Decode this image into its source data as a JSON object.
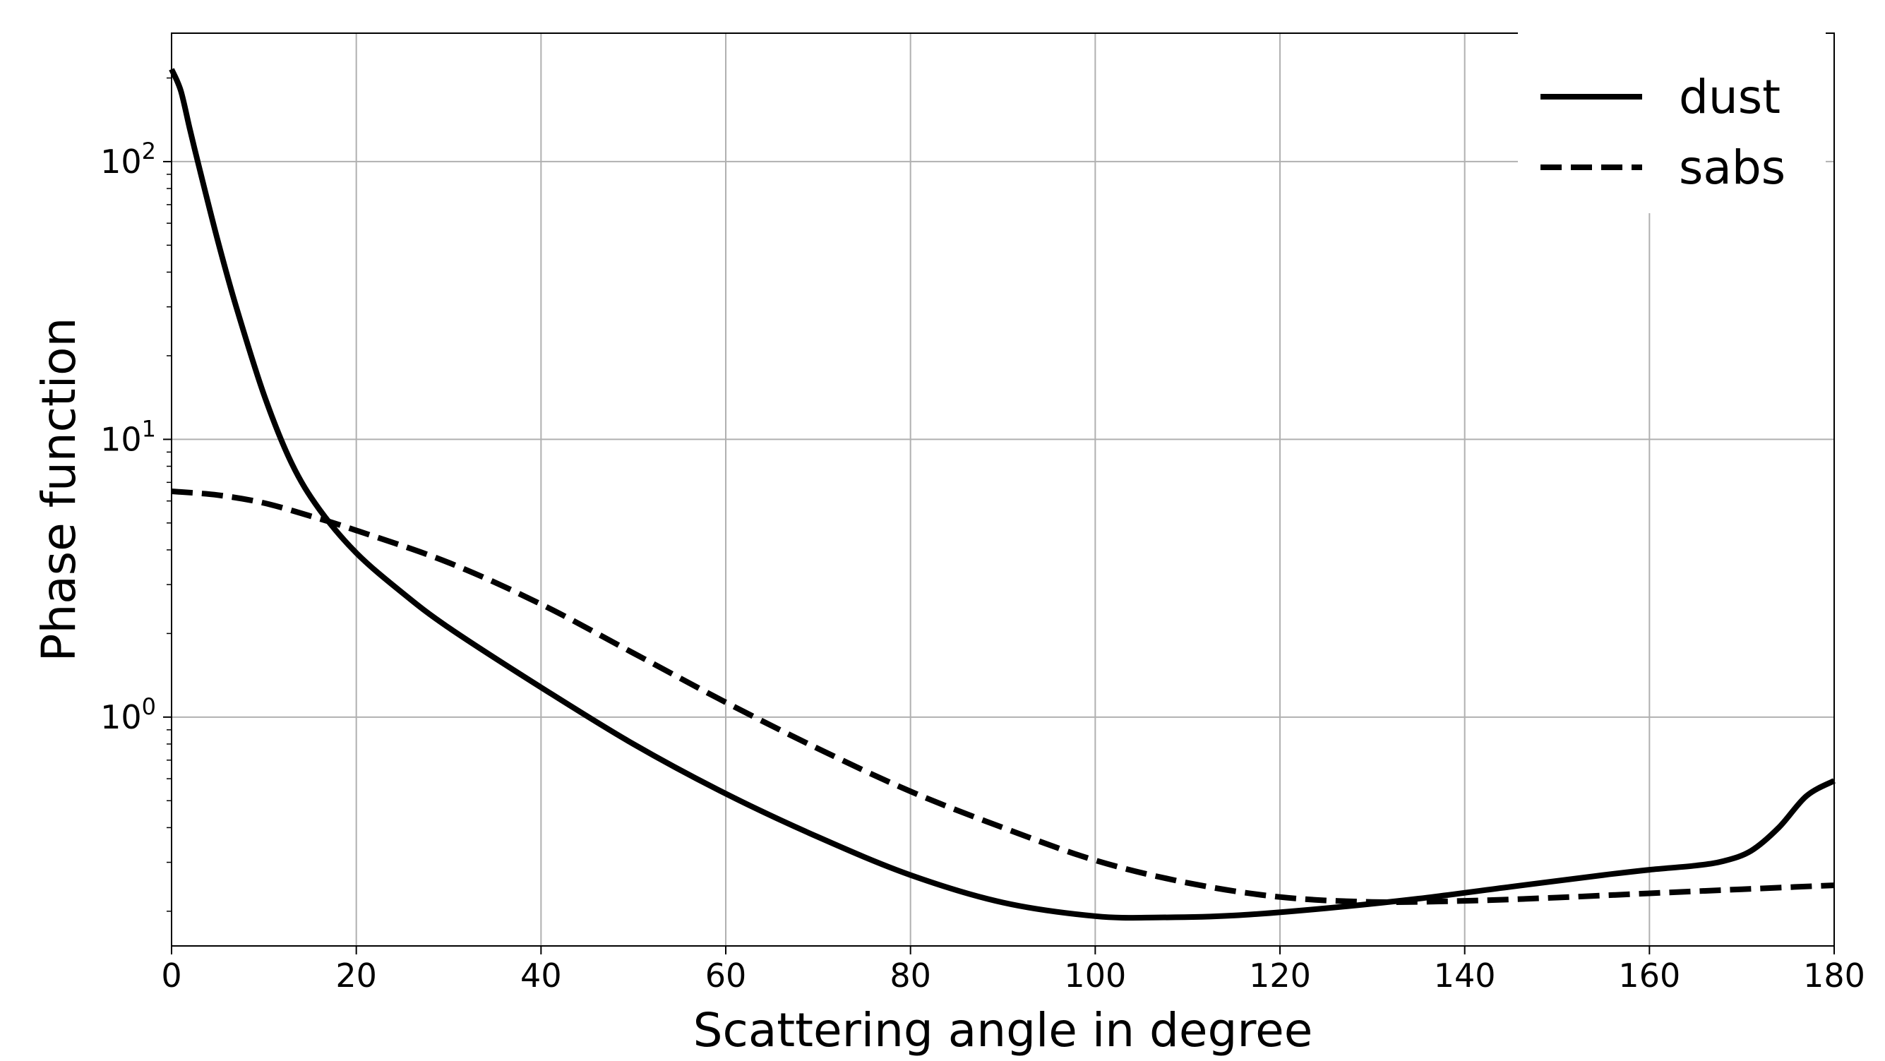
{
  "chart_data": {
    "type": "line",
    "xlabel": "Scattering angle in degree",
    "ylabel": "Phase function",
    "xlim": [
      0,
      180
    ],
    "ylim": [
      0.15,
      290
    ],
    "yscale": "log",
    "grid": true,
    "legend_position": "top-right",
    "x_ticks": [
      0,
      20,
      40,
      60,
      80,
      100,
      120,
      140,
      160,
      180
    ],
    "x_tick_labels": [
      "0",
      "20",
      "40",
      "60",
      "80",
      "100",
      "120",
      "140",
      "160",
      "180"
    ],
    "y_ticks": [
      1,
      10,
      100
    ],
    "y_tick_labels": [
      {
        "base": "10",
        "exp": "0"
      },
      {
        "base": "10",
        "exp": "1"
      },
      {
        "base": "10",
        "exp": "2"
      }
    ],
    "series": [
      {
        "name": "dust",
        "style": "solid",
        "color": "#000000",
        "x": [
          0,
          1,
          2,
          3,
          5,
          7,
          10,
          13,
          16,
          20,
          25,
          30,
          40,
          50,
          60,
          70,
          80,
          90,
          100,
          107,
          115,
          125,
          135,
          145,
          155,
          160,
          165,
          168,
          171,
          174,
          177,
          180
        ],
        "y": [
          215,
          180,
          130,
          95,
          52,
          30,
          14.5,
          8.2,
          5.6,
          3.9,
          2.8,
          2.1,
          1.28,
          0.8,
          0.53,
          0.37,
          0.27,
          0.215,
          0.192,
          0.19,
          0.193,
          0.205,
          0.222,
          0.245,
          0.27,
          0.282,
          0.292,
          0.303,
          0.33,
          0.4,
          0.52,
          0.59
        ]
      },
      {
        "name": "sabs",
        "style": "dashed",
        "color": "#000000",
        "x": [
          0,
          5,
          10,
          15,
          20,
          30,
          40,
          50,
          60,
          70,
          80,
          90,
          100,
          110,
          120,
          130,
          140,
          150,
          160,
          170,
          180
        ],
        "y": [
          6.5,
          6.3,
          5.9,
          5.3,
          4.7,
          3.6,
          2.55,
          1.7,
          1.13,
          0.77,
          0.54,
          0.4,
          0.305,
          0.253,
          0.225,
          0.216,
          0.218,
          0.224,
          0.232,
          0.24,
          0.248
        ]
      }
    ]
  }
}
